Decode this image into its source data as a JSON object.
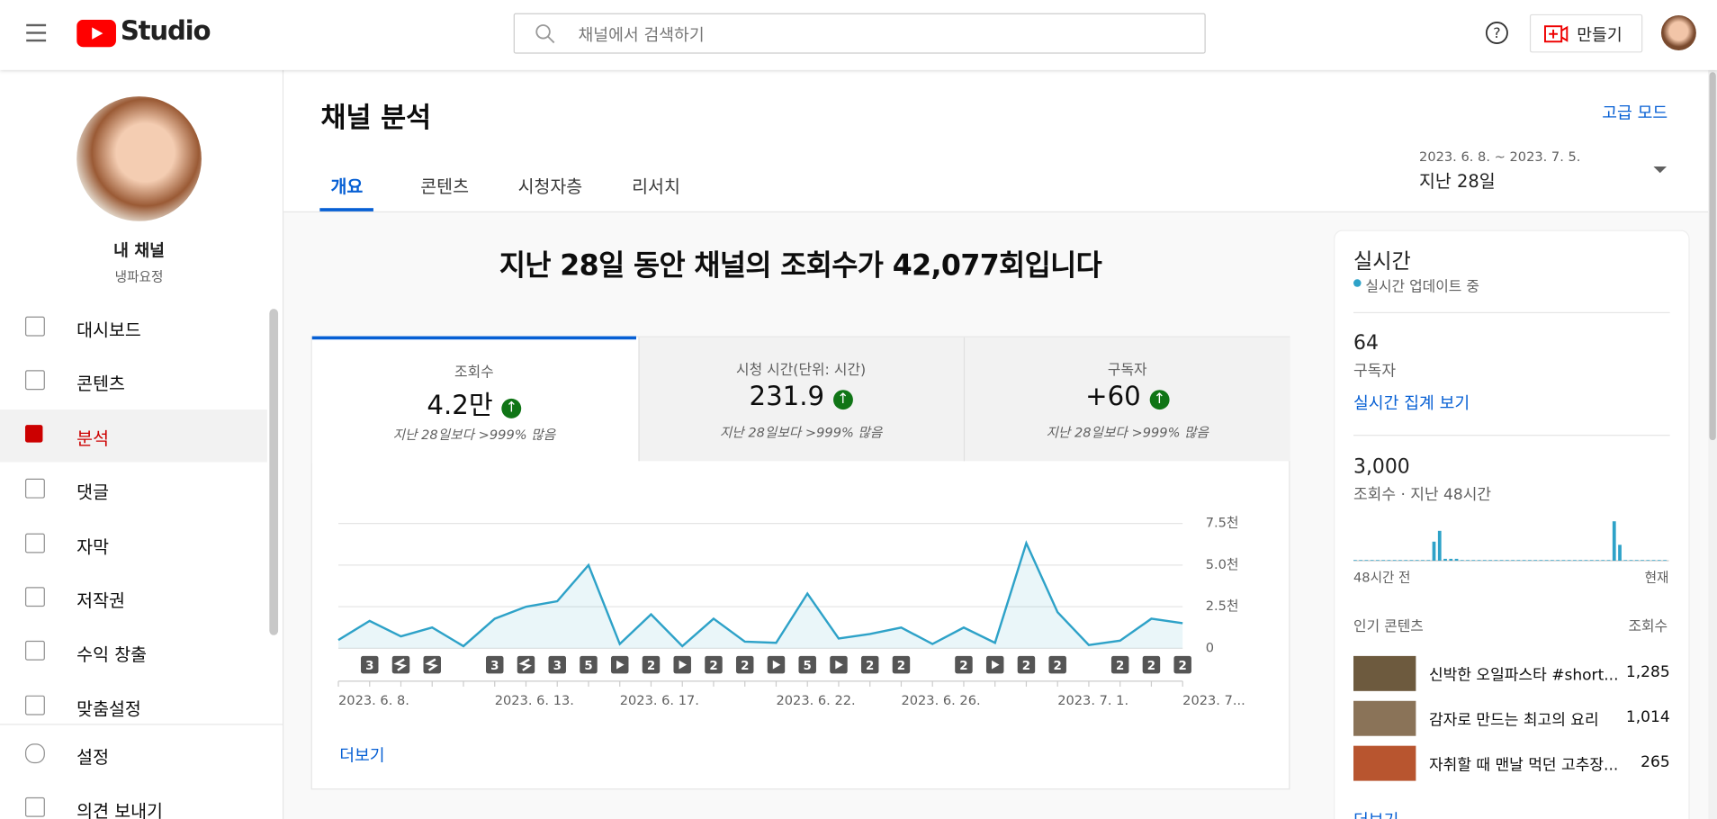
{
  "header": {
    "brand": "Studio",
    "search": "채널에서 검색하기",
    "create": "만들기"
  },
  "sidebar": {
    "channel_name": "내 채널",
    "channel_handle": "냉파요정",
    "menu": [
      "대시보드",
      "콘텐츠",
      "분석",
      "댓글",
      "자막",
      "저작권",
      "수익 창출",
      "맞춤설정"
    ],
    "footer": [
      "설정",
      "의견 보내기"
    ]
  },
  "page": {
    "title": "채널 분석",
    "advanced": "고급 모드",
    "tabs": [
      "개요",
      "콘텐츠",
      "시청자층",
      "리서치"
    ],
    "date_range": "2023. 6. 8. ~ 2023. 7. 5.",
    "period": "지난 28일",
    "headline": "지난 28일 동안 채널의 조회수가 42,077회입니다",
    "metrics": [
      {
        "label": "조회수",
        "value": "4.2만",
        "note": "지난 28일보다 >999% 많음"
      },
      {
        "label": "시청 시간(단위: 시간)",
        "value": "231.9",
        "note": "지난 28일보다 >999% 많음"
      },
      {
        "label": "구독자",
        "value": "+60",
        "note": "지난 28일보다 >999% 많음"
      }
    ],
    "more": "더보기"
  },
  "realtime": {
    "title": "실시간",
    "status": "실시간 업데이트 중",
    "subscribers": "64",
    "subscribers_label": "구독자",
    "view_count_link": "실시간 집계 보기",
    "views": "3,000",
    "views_label": "조회수 · 지난 48시간",
    "top_title": "인기 콘텐츠",
    "top_col": "조회수",
    "top": [
      {
        "title": "신박한 오일파스타 #short...",
        "views": "1,285"
      },
      {
        "title": "감자로 만드는 최고의 요리",
        "views": "1,014"
      },
      {
        "title": "자취할 때 맨날 먹던 고추장...",
        "views": "265"
      }
    ],
    "more": "더보기"
  },
  "chart_data": [
    {
      "type": "line",
      "color": "#2ea2c8",
      "categories": [
        "2023. 6. 8.",
        null,
        null,
        null,
        null,
        "2023. 6. 13.",
        null,
        null,
        null,
        "2023. 6. 17.",
        null,
        null,
        null,
        null,
        "2023. 6. 22.",
        null,
        null,
        null,
        "2023. 6. 26.",
        null,
        null,
        null,
        null,
        "2023. 7. 1.",
        null,
        null,
        null,
        "2023. 7..."
      ],
      "values": [
        500,
        1650,
        720,
        1250,
        130,
        1780,
        2500,
        2830,
        5000,
        260,
        2040,
        130,
        1780,
        400,
        330,
        3290,
        590,
        860,
        1250,
        260,
        1250,
        330,
        6320,
        2170,
        200,
        460,
        1780,
        1510
      ],
      "markers": [
        null,
        3,
        null,
        null,
        null,
        3,
        null,
        3,
        5,
        null,
        2,
        null,
        2,
        2,
        null,
        5,
        null,
        2,
        2,
        null,
        2,
        null,
        2,
        2,
        null,
        2,
        2,
        2
      ],
      "ylim": [
        0,
        7500
      ],
      "yticks": [
        0,
        {
          "value": 2500,
          "label": "2.5천"
        },
        {
          "value": 5000,
          "label": "5.0천"
        },
        {
          "value": 7500,
          "label": "7.5천"
        }
      ],
      "grid": true
    },
    {
      "type": "bar",
      "color": "#2ea2c8",
      "start_label": "48시간 전",
      "end_label": "현재",
      "values": [
        10,
        10,
        10,
        10,
        10,
        10,
        10,
        10,
        10,
        10,
        10,
        10,
        10,
        10,
        300,
        470,
        30,
        30,
        30,
        10,
        10,
        10,
        10,
        10,
        10,
        10,
        10,
        10,
        10,
        10,
        10,
        10,
        10,
        10,
        10,
        10,
        10,
        10,
        10,
        10,
        10,
        10,
        10,
        10,
        10,
        10,
        620,
        250,
        10,
        10,
        10,
        10,
        10,
        10,
        10,
        10
      ]
    }
  ]
}
